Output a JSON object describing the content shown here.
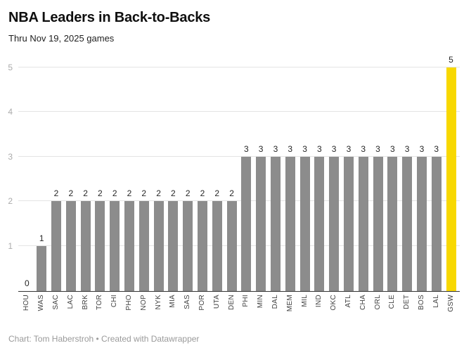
{
  "header": {
    "title": "NBA Leaders in Back-to-Backs",
    "subtitle": "Thru Nov 19, 2025 games"
  },
  "footer": {
    "credit": "Chart: Tom Haberstroh • Created with Datawrapper"
  },
  "chart_data": {
    "type": "bar",
    "title": "NBA Leaders in Back-to-Backs",
    "subtitle": "Thru Nov 19, 2025 games",
    "categories": [
      "HOU",
      "WAS",
      "SAC",
      "LAC",
      "BRK",
      "TOR",
      "CHI",
      "PHO",
      "NOP",
      "NYK",
      "MIA",
      "SAS",
      "POR",
      "UTA",
      "DEN",
      "PHI",
      "MIN",
      "DAL",
      "MEM",
      "MIL",
      "IND",
      "OKC",
      "ATL",
      "CHA",
      "ORL",
      "CLE",
      "DET",
      "BOS",
      "LAL",
      "GSW"
    ],
    "values": [
      0,
      1,
      2,
      2,
      2,
      2,
      2,
      2,
      2,
      2,
      2,
      2,
      2,
      2,
      2,
      3,
      3,
      3,
      3,
      3,
      3,
      3,
      3,
      3,
      3,
      3,
      3,
      3,
      3,
      5
    ],
    "xlabel": "",
    "ylabel": "",
    "ylim": [
      0,
      5
    ],
    "yticks": [
      1,
      2,
      3,
      4,
      5
    ],
    "grid": true,
    "value_labels": true,
    "bar_color": "#8c8c8c",
    "highlight_color": "#f8d800",
    "highlight_category": "GSW",
    "legend": "none"
  }
}
